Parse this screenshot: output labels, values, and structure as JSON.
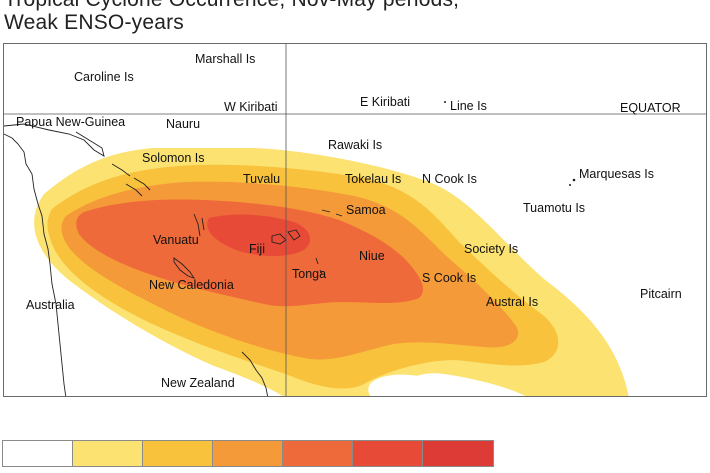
{
  "title": {
    "line1": "Tropical Cyclone Occurrence, Nov-May periods,",
    "line2": "Weak ENSO-years"
  },
  "map": {
    "labels": [
      {
        "id": "marshall",
        "text": "Marshall Is"
      },
      {
        "id": "caroline",
        "text": "Caroline Is"
      },
      {
        "id": "w-kiribati",
        "text": "W Kiribati"
      },
      {
        "id": "e-kiribati",
        "text": "E Kiribati"
      },
      {
        "id": "line",
        "text": "Line Is"
      },
      {
        "id": "equator",
        "text": "EQUATOR"
      },
      {
        "id": "png",
        "text": "Papua New-Guinea"
      },
      {
        "id": "nauru",
        "text": "Nauru"
      },
      {
        "id": "rawaki",
        "text": "Rawaki Is"
      },
      {
        "id": "solomon",
        "text": "Solomon Is"
      },
      {
        "id": "marquesas",
        "text": "Marquesas Is"
      },
      {
        "id": "tuvalu",
        "text": "Tuvalu"
      },
      {
        "id": "tokelau",
        "text": "Tokelau Is"
      },
      {
        "id": "ncook",
        "text": "N Cook Is"
      },
      {
        "id": "tuamotu",
        "text": "Tuamotu Is"
      },
      {
        "id": "samoa",
        "text": "Samoa"
      },
      {
        "id": "vanuatu",
        "text": "Vanuatu"
      },
      {
        "id": "fiji",
        "text": "Fiji"
      },
      {
        "id": "niue",
        "text": "Niue"
      },
      {
        "id": "society",
        "text": "Society Is"
      },
      {
        "id": "tonga",
        "text": "Tonga"
      },
      {
        "id": "scook",
        "text": "S Cook Is"
      },
      {
        "id": "newcal",
        "text": "New Caledonia"
      },
      {
        "id": "australia",
        "text": "Australia"
      },
      {
        "id": "austral",
        "text": "Austral Is"
      },
      {
        "id": "pitcairn",
        "text": "Pitcairn"
      },
      {
        "id": "nz",
        "text": "New Zealand"
      }
    ],
    "bands": [
      {
        "level": 1,
        "color": "#fbe271"
      },
      {
        "level": 2,
        "color": "#f8c23c"
      },
      {
        "level": 3,
        "color": "#f49a38"
      },
      {
        "level": 4,
        "color": "#ef6a3a"
      },
      {
        "level": 5,
        "color": "#e84a38"
      }
    ]
  },
  "legend": {
    "swatches": [
      {
        "color": "#ffffff"
      },
      {
        "color": "#fbe271"
      },
      {
        "color": "#f8c23c"
      },
      {
        "color": "#f49a38"
      },
      {
        "color": "#ef6a3a"
      },
      {
        "color": "#e84a38"
      },
      {
        "color": "#dd3b36"
      }
    ]
  }
}
